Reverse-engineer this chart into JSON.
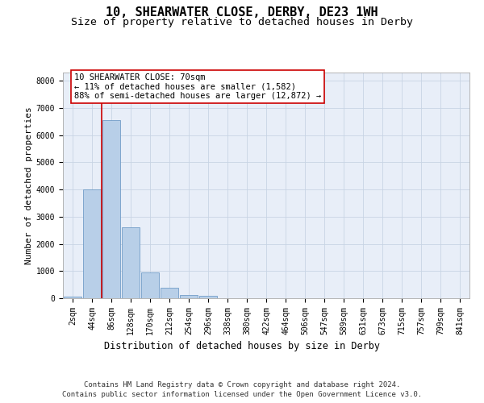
{
  "title_line1": "10, SHEARWATER CLOSE, DERBY, DE23 1WH",
  "title_line2": "Size of property relative to detached houses in Derby",
  "xlabel": "Distribution of detached houses by size in Derby",
  "ylabel": "Number of detached properties",
  "categories": [
    "2sqm",
    "44sqm",
    "86sqm",
    "128sqm",
    "170sqm",
    "212sqm",
    "254sqm",
    "296sqm",
    "338sqm",
    "380sqm",
    "422sqm",
    "464sqm",
    "506sqm",
    "547sqm",
    "589sqm",
    "631sqm",
    "673sqm",
    "715sqm",
    "757sqm",
    "799sqm",
    "841sqm"
  ],
  "bar_heights": [
    50,
    4000,
    6550,
    2600,
    950,
    380,
    130,
    90,
    0,
    0,
    0,
    0,
    0,
    0,
    0,
    0,
    0,
    0,
    0,
    0,
    0
  ],
  "bar_color": "#b8cfe8",
  "bar_edge_color": "#6090c0",
  "grid_color": "#c8d4e4",
  "background_color": "#e8eef8",
  "vline_x": 1.5,
  "vline_color": "#cc0000",
  "annotation_text": "10 SHEARWATER CLOSE: 70sqm\n← 11% of detached houses are smaller (1,582)\n88% of semi-detached houses are larger (12,872) →",
  "annotation_box_edgecolor": "#cc0000",
  "ylim": [
    0,
    8300
  ],
  "yticks": [
    0,
    1000,
    2000,
    3000,
    4000,
    5000,
    6000,
    7000,
    8000
  ],
  "footer_line1": "Contains HM Land Registry data © Crown copyright and database right 2024.",
  "footer_line2": "Contains public sector information licensed under the Open Government Licence v3.0.",
  "title_fontsize": 11,
  "subtitle_fontsize": 9.5,
  "axis_label_fontsize": 8.5,
  "tick_fontsize": 7,
  "annotation_fontsize": 7.5,
  "footer_fontsize": 6.5,
  "ylabel_fontsize": 8
}
